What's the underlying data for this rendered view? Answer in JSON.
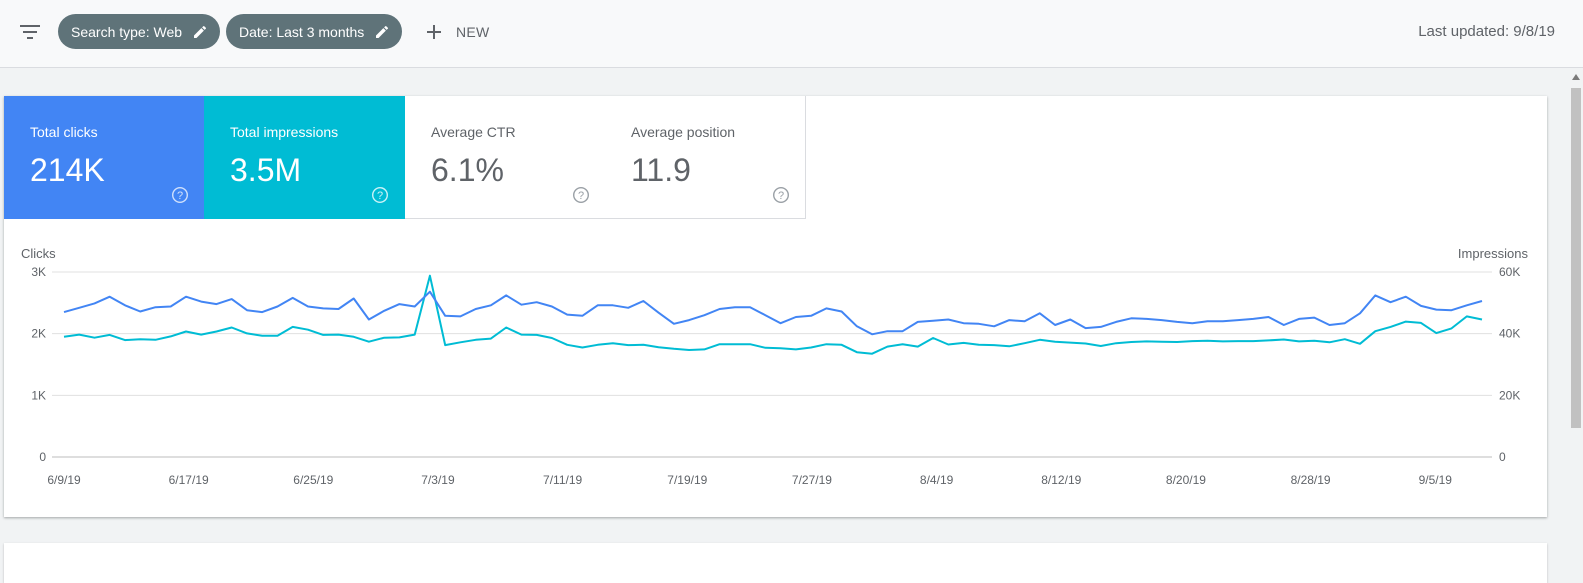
{
  "toolbar": {
    "filter_icon": "filter-list-icon",
    "chips": [
      {
        "label": "Search type: Web",
        "icon": "pencil-icon"
      },
      {
        "label": "Date: Last 3 months",
        "icon": "pencil-icon"
      }
    ],
    "new_label": "NEW",
    "last_updated": "Last updated: 9/8/19"
  },
  "metrics": [
    {
      "label": "Total clicks",
      "value": "214K",
      "selected": true,
      "color": "#4285f4"
    },
    {
      "label": "Total impressions",
      "value": "3.5M",
      "selected": true,
      "color": "#00bcd4"
    },
    {
      "label": "Average CTR",
      "value": "6.1%",
      "selected": false
    },
    {
      "label": "Average position",
      "value": "11.9",
      "selected": false
    }
  ],
  "chart_data": {
    "type": "line",
    "left_axis_label": "Clicks",
    "right_axis_label": "Impressions",
    "left_ticks": [
      "3K",
      "2K",
      "1K",
      "0"
    ],
    "right_ticks": [
      "60K",
      "40K",
      "20K",
      "0"
    ],
    "ylim_left": [
      0,
      3000
    ],
    "ylim_right": [
      0,
      60000
    ],
    "x_labels": [
      "6/9/19",
      "6/17/19",
      "6/25/19",
      "7/3/19",
      "7/11/19",
      "7/19/19",
      "7/27/19",
      "8/4/19",
      "8/12/19",
      "8/20/19",
      "8/28/19",
      "9/5/19"
    ],
    "x_start": "2019-06-09",
    "x_end": "2019-09-08",
    "grid": true,
    "series": [
      {
        "name": "Clicks",
        "axis": "left",
        "color": "#4285f4",
        "values": [
          2350,
          2420,
          2490,
          2600,
          2460,
          2360,
          2430,
          2440,
          2600,
          2520,
          2480,
          2560,
          2380,
          2350,
          2440,
          2580,
          2440,
          2410,
          2400,
          2570,
          2230,
          2370,
          2480,
          2440,
          2680,
          2290,
          2280,
          2400,
          2460,
          2620,
          2470,
          2510,
          2440,
          2310,
          2290,
          2460,
          2460,
          2420,
          2530,
          2340,
          2160,
          2220,
          2300,
          2400,
          2430,
          2430,
          2300,
          2170,
          2270,
          2290,
          2410,
          2360,
          2120,
          1990,
          2040,
          2040,
          2190,
          2210,
          2230,
          2170,
          2160,
          2120,
          2220,
          2200,
          2330,
          2140,
          2230,
          2090,
          2110,
          2190,
          2250,
          2240,
          2220,
          2190,
          2170,
          2200,
          2200,
          2220,
          2240,
          2270,
          2140,
          2240,
          2260,
          2140,
          2170,
          2330,
          2620,
          2510,
          2600,
          2450,
          2390,
          2380,
          2460,
          2530
        ]
      },
      {
        "name": "Impressions",
        "axis": "right",
        "color": "#00bcd4",
        "values": [
          39000,
          39700,
          38700,
          39600,
          37900,
          38200,
          38000,
          39100,
          40700,
          39700,
          40700,
          42000,
          40100,
          39300,
          39300,
          42200,
          41300,
          39600,
          39700,
          39000,
          37400,
          38700,
          38800,
          39700,
          58800,
          36300,
          37200,
          38000,
          38400,
          42000,
          39700,
          39600,
          38600,
          36400,
          35500,
          36400,
          36900,
          36300,
          36400,
          35600,
          35100,
          34700,
          34900,
          36600,
          36600,
          36600,
          35400,
          35300,
          34900,
          35500,
          36600,
          36400,
          34000,
          33500,
          35800,
          36600,
          35800,
          38600,
          36500,
          37000,
          36400,
          36300,
          35900,
          36900,
          38000,
          37400,
          37100,
          36800,
          36000,
          36900,
          37300,
          37500,
          37400,
          37300,
          37600,
          37700,
          37500,
          37600,
          37600,
          37800,
          38100,
          37500,
          37700,
          37200,
          38200,
          36700,
          40800,
          42200,
          43900,
          43500,
          40200,
          41700,
          45600,
          44600
        ]
      }
    ]
  }
}
